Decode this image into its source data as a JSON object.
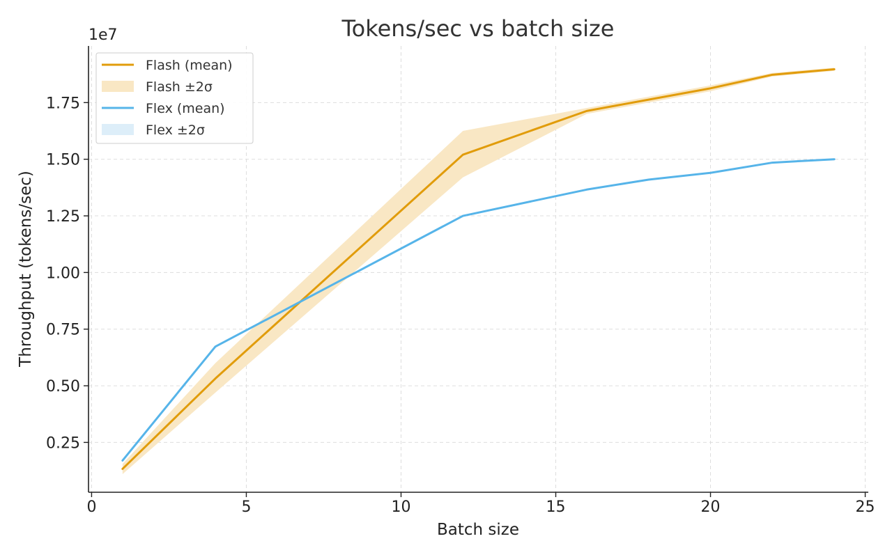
{
  "chart_data": {
    "type": "line",
    "title": "Tokens/sec vs batch size",
    "xlabel": "Batch size",
    "ylabel": "Throughput (tokens/sec)",
    "y_offset_label": "1e7",
    "xlim": [
      -0.1,
      25.1
    ],
    "ylim": [
      0.03,
      2.0
    ],
    "x_ticks": [
      0,
      5,
      10,
      15,
      20,
      25
    ],
    "x_tick_labels": [
      "0",
      "5",
      "10",
      "15",
      "20",
      "25"
    ],
    "y_ticks": [
      0.25,
      0.5,
      0.75,
      1.0,
      1.25,
      1.5,
      1.75
    ],
    "y_tick_labels": [
      "0.25",
      "0.50",
      "0.75",
      "1.00",
      "1.25",
      "1.50",
      "1.75"
    ],
    "grid": true,
    "legend_position": "top-left",
    "x": [
      1,
      4,
      12,
      16,
      18,
      20,
      22,
      24
    ],
    "series": [
      {
        "name": "Flash (mean)",
        "color": "#E19C0B",
        "values": [
          0.133,
          0.532,
          1.52,
          1.713,
          1.763,
          1.813,
          1.873,
          1.897
        ],
        "band_name": "Flash ±2σ",
        "band_color": "#F9E7C4",
        "band_lower": [
          0.11,
          0.47,
          1.42,
          1.7,
          1.75,
          1.8,
          1.865,
          1.89
        ],
        "band_upper": [
          0.155,
          0.6,
          1.625,
          1.726,
          1.776,
          1.826,
          1.881,
          1.904
        ]
      },
      {
        "name": "Flex (mean)",
        "color": "#56B4E9",
        "values": [
          0.17,
          0.673,
          1.25,
          1.366,
          1.41,
          1.44,
          1.485,
          1.5
        ],
        "band_name": "Flex ±2σ",
        "band_color": "#DDEEF9",
        "band_lower": [
          0.167,
          0.669,
          1.247,
          1.363,
          1.407,
          1.437,
          1.482,
          1.497
        ],
        "band_upper": [
          0.173,
          0.677,
          1.253,
          1.369,
          1.413,
          1.443,
          1.488,
          1.503
        ]
      }
    ]
  }
}
